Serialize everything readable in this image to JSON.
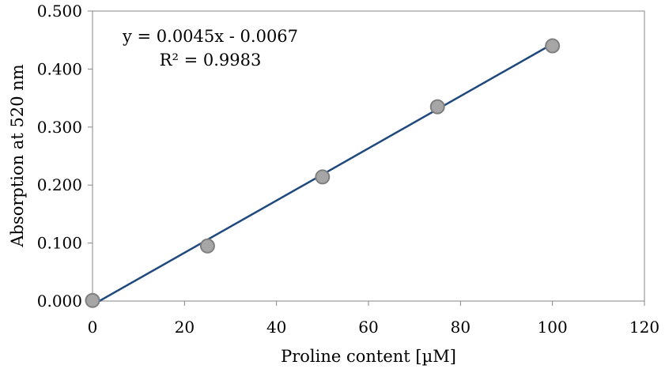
{
  "chart_data": {
    "type": "scatter",
    "title": "",
    "xlabel": "Proline content [µM]",
    "ylabel": "Absorption at 520 nm",
    "xlim": [
      0,
      120
    ],
    "ylim": [
      0,
      0.5
    ],
    "x_ticks": [
      "0",
      "20",
      "40",
      "60",
      "80",
      "100",
      "120"
    ],
    "y_ticks": [
      "0.000",
      "0.100",
      "0.200",
      "0.300",
      "0.400",
      "0.500"
    ],
    "grid": false,
    "series": [
      {
        "x": [
          0,
          25,
          50,
          75,
          100
        ],
        "y": [
          0.001,
          0.095,
          0.214,
          0.335,
          0.44
        ]
      }
    ],
    "trendline": {
      "type": "linear",
      "slope": 0.0045,
      "intercept": -0.0067,
      "equation_text": "y = 0.0045x - 0.0067",
      "r2_text": "R² = 0.9983"
    },
    "colors": {
      "marker_fill": "#a6a6a6",
      "marker_stroke": "#7f7f7f",
      "trendline": "#1f497d",
      "axis": "#868686"
    }
  }
}
